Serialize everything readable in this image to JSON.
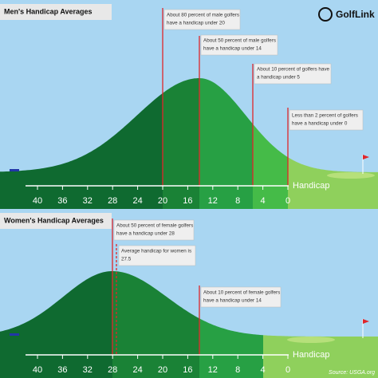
{
  "logo": "GolfLink",
  "panels": [
    {
      "title": "Men's Handicap Averages",
      "annotations": [
        [
          "About 80 percent of male golfers",
          "have a handicap under 20"
        ],
        [
          "About 50 percent of male golfers",
          "have a handicap under 14"
        ],
        [
          "About 10 percent of golfers have",
          "a handicap under 5"
        ],
        [
          "Less than 2 percent of golfers",
          "have a handicap under 0"
        ]
      ],
      "ticks": [
        40,
        36,
        32,
        28,
        24,
        20,
        16,
        12,
        8,
        4,
        0
      ],
      "axis_label": "Handicap"
    },
    {
      "title": "Women's Handicap Averages",
      "annotations": [
        [
          "About 50 percent of female golfers",
          "have a handicap under 28"
        ],
        [
          "Average handicap for women is",
          "27.5"
        ],
        [
          "About 10 percent of female golfers",
          "have a handicap under 14"
        ]
      ],
      "ticks": [
        40,
        36,
        32,
        28,
        24,
        20,
        16,
        12,
        8,
        4,
        0
      ],
      "axis_label": "Handicap"
    }
  ],
  "source": "Source: USGA.org"
}
